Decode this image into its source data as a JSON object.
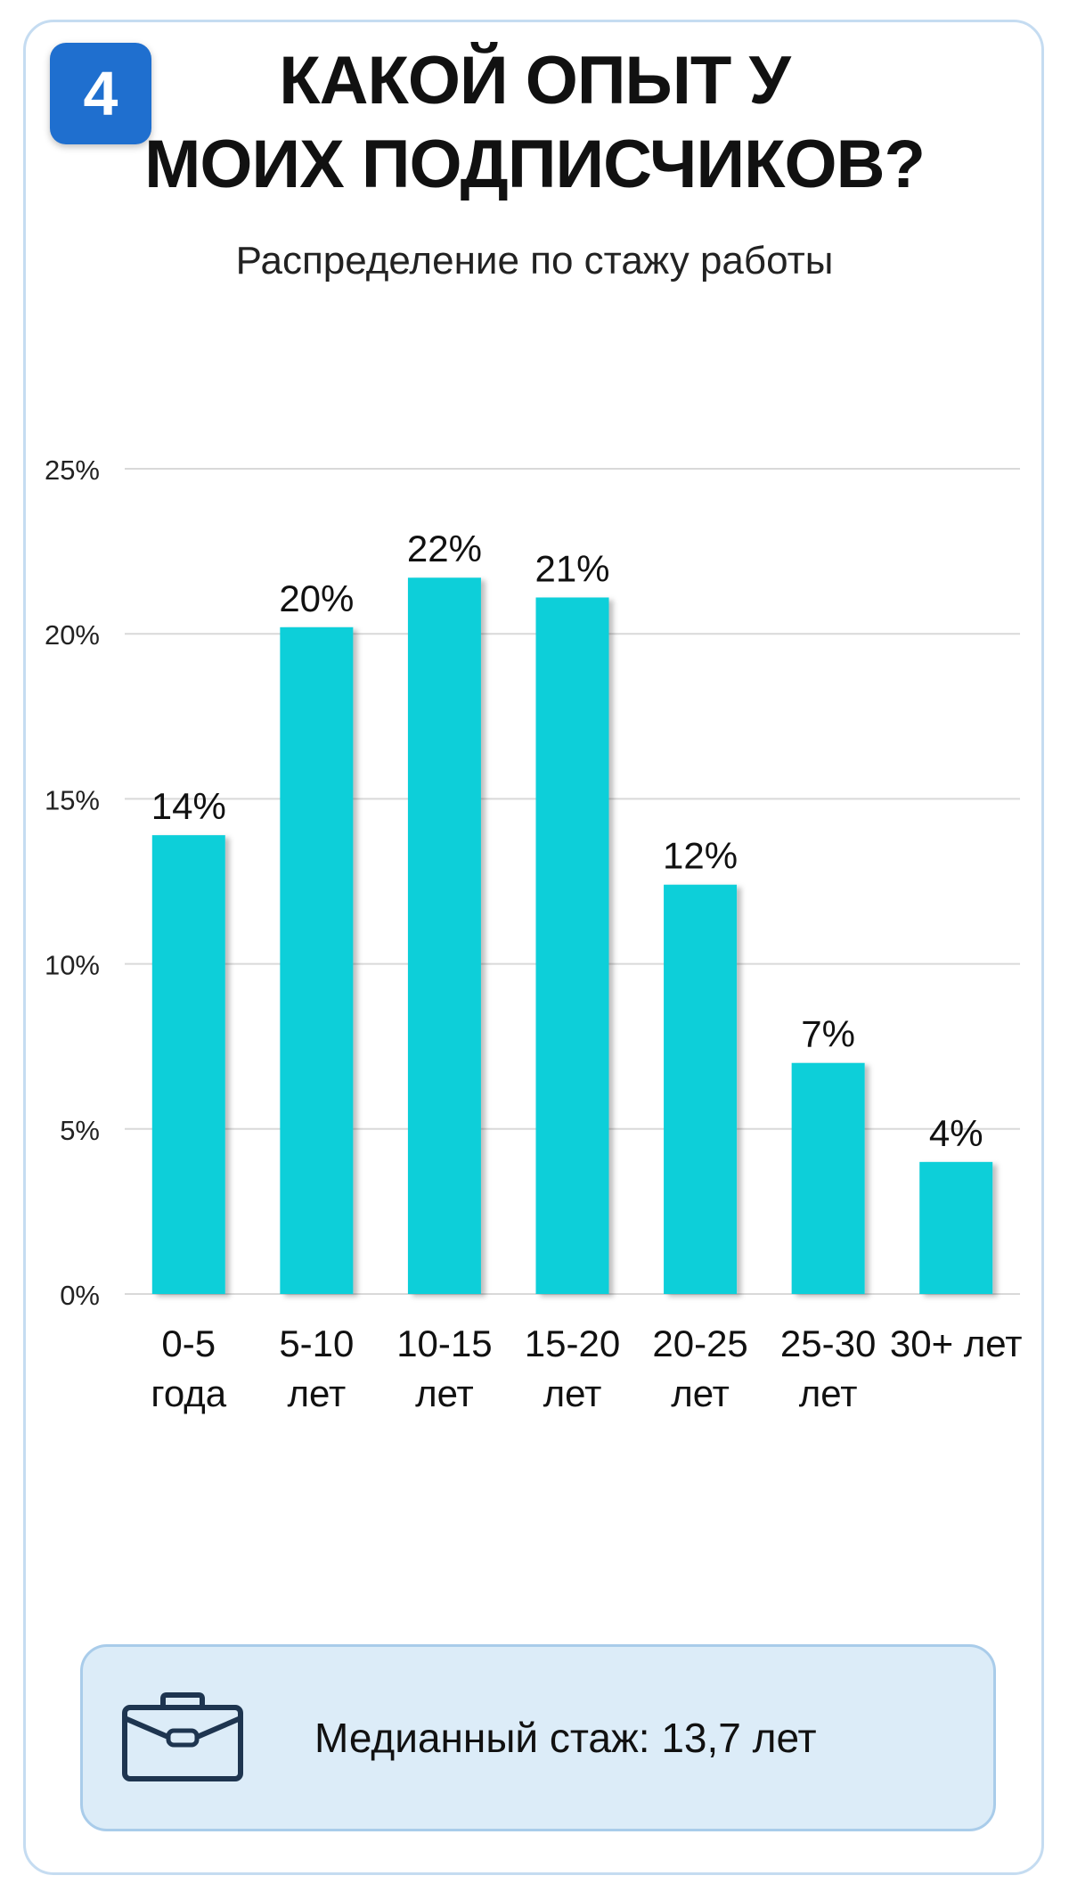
{
  "badge": {
    "number": "4"
  },
  "header": {
    "title_line1": "КАКОЙ ОПЫТ У",
    "title_line2": "МОИХ ПОДПИСЧИКОВ?",
    "subtitle": "Распределение по стажу работы"
  },
  "chart_data": {
    "type": "bar",
    "categories": [
      [
        "0-5",
        "года"
      ],
      [
        "5-10",
        "лет"
      ],
      [
        "10-15",
        "лет"
      ],
      [
        "15-20",
        "лет"
      ],
      [
        "20-25",
        "лет"
      ],
      [
        "25-30",
        "лет"
      ],
      [
        "30+ лет"
      ]
    ],
    "values": [
      13.9,
      20.2,
      21.7,
      21.1,
      12.4,
      7.0,
      4.0
    ],
    "data_labels": [
      "14%",
      "20%",
      "22%",
      "21%",
      "12%",
      "7%",
      "4%"
    ],
    "yticks": [
      0,
      5,
      10,
      15,
      20,
      25
    ],
    "ytick_labels": [
      "0%",
      "5%",
      "10%",
      "15%",
      "20%",
      "25%"
    ],
    "ylim": [
      0,
      25
    ],
    "grid": true,
    "bar_color": "#11cfd9",
    "legend": "none"
  },
  "info": {
    "icon": "briefcase-icon",
    "text": "Медианный стаж: 13,7 лет"
  },
  "colors": {
    "badge": "#1f6fcf",
    "card_border": "#c5dcf1",
    "info_bg": "#dcecf8",
    "info_border": "#a9ccea",
    "icon": "#1e3550"
  }
}
